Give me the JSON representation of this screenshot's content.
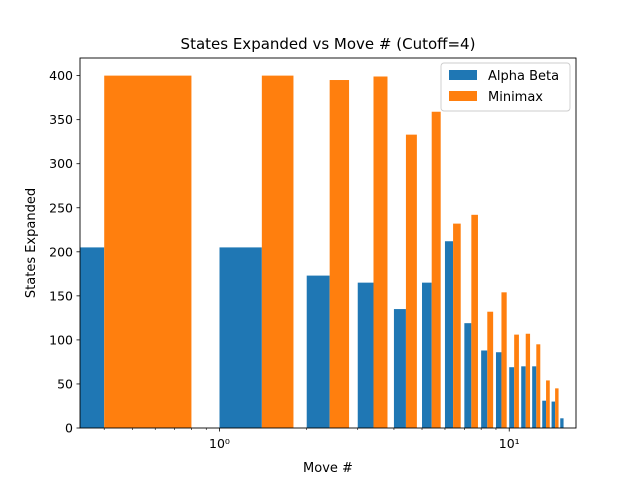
{
  "chart_data": {
    "type": "bar",
    "title": "States Expanded vs Move # (Cutoff=4)",
    "xlabel": "Move #",
    "ylabel": "States Expanded",
    "x_scale": "log",
    "xlim": [
      0.33,
      17
    ],
    "ylim": [
      0,
      420
    ],
    "yticks": [
      0,
      50,
      100,
      150,
      200,
      250,
      300,
      350,
      400
    ],
    "xticks": [
      {
        "value": 1,
        "label": "10⁰"
      },
      {
        "value": 10,
        "label": "10¹"
      }
    ],
    "legend_position": "top-right",
    "grid": false,
    "colors": {
      "alpha_beta": "#1f77b4",
      "minimax": "#ff7f0e"
    },
    "bar_width": 0.4,
    "minimax_offset": 0.4,
    "series": [
      {
        "name": "Alpha Beta",
        "key": "alpha_beta",
        "x": [
          0,
          1,
          2,
          3,
          4,
          5,
          6,
          7,
          8,
          9,
          10,
          11,
          12,
          13,
          14
        ],
        "values": [
          205,
          205,
          173,
          165,
          135,
          165,
          212,
          119,
          88,
          86,
          69,
          70,
          70,
          31,
          30
        ]
      },
      {
        "name": "Minimax",
        "key": "minimax",
        "x": [
          0,
          1,
          2,
          3,
          4,
          5,
          6,
          7,
          8,
          9,
          10,
          11,
          12,
          13,
          14
        ],
        "values": [
          400,
          400,
          395,
          399,
          333,
          359,
          232,
          242,
          132,
          154,
          106,
          107,
          95,
          54,
          45
        ]
      },
      {
        "name": "",
        "key": "alpha_beta",
        "x": [
          15
        ],
        "values": [
          11
        ]
      }
    ]
  }
}
